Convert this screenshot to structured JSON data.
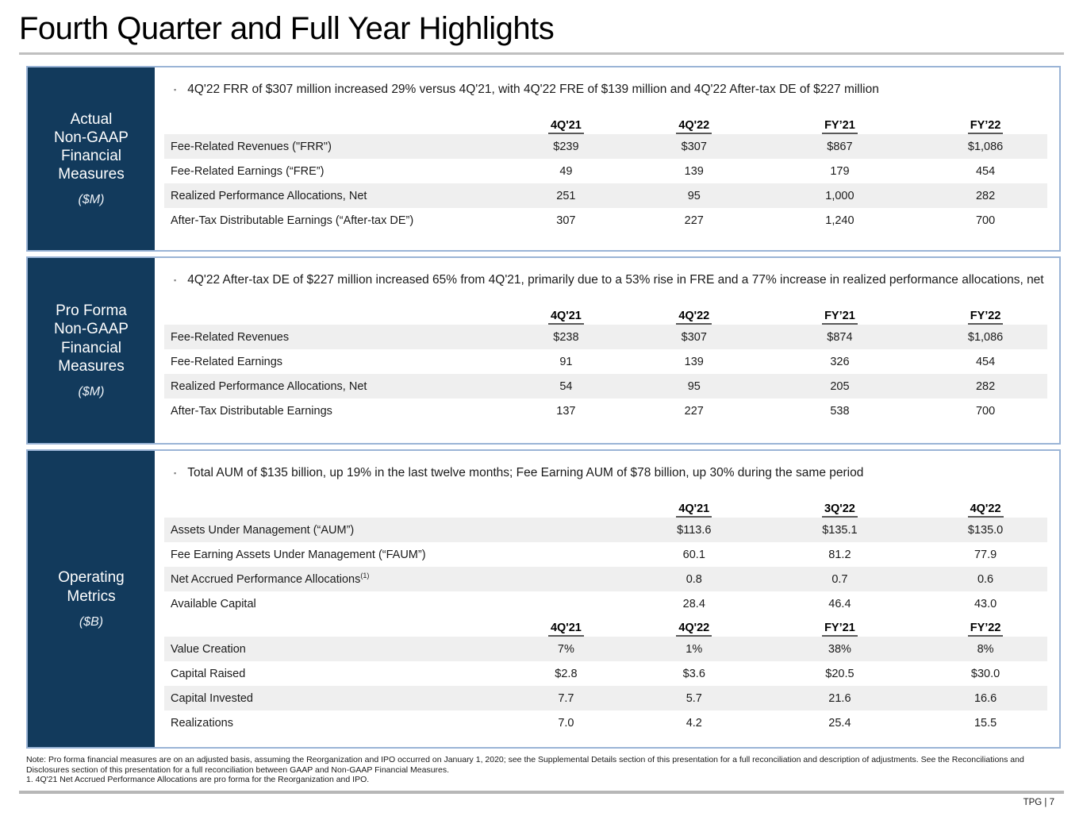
{
  "page": {
    "title": "Fourth Quarter and Full Year Highlights",
    "footer": "TPG | 7",
    "footnotes": [
      "Note: Pro forma financial measures are on an adjusted basis, assuming the Reorganization and IPO occurred on January 1, 2020; see the Supplemental Details section of this presentation for a full reconciliation and description of adjustments. See the Reconciliations and Disclosures section of this presentation for a full reconciliation between GAAP and Non-GAAP Financial Measures.",
      "1. 4Q'21 Net Accrued Performance Allocations are pro forma for the Reorganization and IPO."
    ]
  },
  "colors": {
    "sidebar_navy": "#123a5c",
    "panel_border": "#9ab4d6",
    "row_stripe": "#efefef",
    "rule_gray": "#bfbfbf"
  },
  "panels": [
    {
      "sidebar_lines": [
        "Actual",
        "Non-GAAP",
        "Financial",
        "Measures"
      ],
      "sidebar_unit": "($M)",
      "bullet": "4Q'22 FRR of $307 million increased 29% versus 4Q'21, with 4Q'22 FRE of $139 million and 4Q'22 After-tax DE of $227 million",
      "tables": [
        {
          "layout": "four-col",
          "headers": [
            "4Q'21",
            "4Q'22",
            "FY’21",
            "FY’22"
          ],
          "rows": [
            {
              "label": "Fee-Related Revenues (\"FRR\")",
              "values": [
                "$239",
                "$307",
                "$867",
                "$1,086"
              ]
            },
            {
              "label": "Fee-Related Earnings (“FRE”)",
              "values": [
                "49",
                "139",
                "179",
                "454"
              ]
            },
            {
              "label": "Realized Performance Allocations, Net",
              "values": [
                "251",
                "95",
                "1,000",
                "282"
              ]
            },
            {
              "label": "After-Tax Distributable Earnings (“After-tax DE”)",
              "values": [
                "307",
                "227",
                "1,240",
                "700"
              ]
            }
          ]
        }
      ]
    },
    {
      "sidebar_lines": [
        "Pro Forma",
        "Non-GAAP",
        "Financial",
        "Measures"
      ],
      "sidebar_unit": "($M)",
      "bullet": "4Q'22 After-tax DE of $227 million increased 65% from 4Q'21, primarily due to a 53% rise in FRE and a 77% increase in realized performance allocations, net",
      "tables": [
        {
          "layout": "four-col",
          "headers": [
            "4Q'21",
            "4Q'22",
            "FY’21",
            "FY’22"
          ],
          "rows": [
            {
              "label": "Fee-Related Revenues",
              "values": [
                "$238",
                "$307",
                "$874",
                "$1,086"
              ]
            },
            {
              "label": "Fee-Related Earnings",
              "values": [
                "91",
                "139",
                "326",
                "454"
              ]
            },
            {
              "label": "Realized Performance Allocations, Net",
              "values": [
                "54",
                "95",
                "205",
                "282"
              ]
            },
            {
              "label": "After-Tax Distributable Earnings",
              "values": [
                "137",
                "227",
                "538",
                "700"
              ]
            }
          ]
        }
      ]
    },
    {
      "sidebar_lines": [
        "Operating",
        "Metrics"
      ],
      "sidebar_unit": "($B)",
      "bullet": "Total AUM of $135 billion, up 19% in the last twelve months; Fee Earning AUM of $78 billion, up 30% during the same period",
      "tables": [
        {
          "layout": "three-col",
          "headers": [
            "4Q'21",
            "3Q'22",
            "4Q'22"
          ],
          "rows": [
            {
              "label": "Assets Under Management (“AUM”)",
              "values": [
                "$113.6",
                "$135.1",
                "$135.0"
              ]
            },
            {
              "label": "Fee Earning Assets Under Management (“FAUM”)",
              "values": [
                "60.1",
                "81.2",
                "77.9"
              ]
            },
            {
              "label": "Net Accrued Performance Allocations",
              "sup": "(1)",
              "values": [
                "0.8",
                "0.7",
                "0.6"
              ]
            },
            {
              "label": "Available Capital",
              "values": [
                "28.4",
                "46.4",
                "43.0"
              ]
            }
          ]
        },
        {
          "layout": "four-col",
          "headers": [
            "4Q'21",
            "4Q'22",
            "FY’21",
            "FY’22"
          ],
          "rows": [
            {
              "label": "Value Creation",
              "values": [
                "7%",
                "1%",
                "38%",
                "8%"
              ]
            },
            {
              "label": "Capital Raised",
              "values": [
                "$2.8",
                "$3.6",
                "$20.5",
                "$30.0"
              ]
            },
            {
              "label": "Capital Invested",
              "values": [
                "7.7",
                "5.7",
                "21.6",
                "16.6"
              ]
            },
            {
              "label": "Realizations",
              "values": [
                "7.0",
                "4.2",
                "25.4",
                "15.5"
              ]
            }
          ]
        }
      ]
    }
  ]
}
